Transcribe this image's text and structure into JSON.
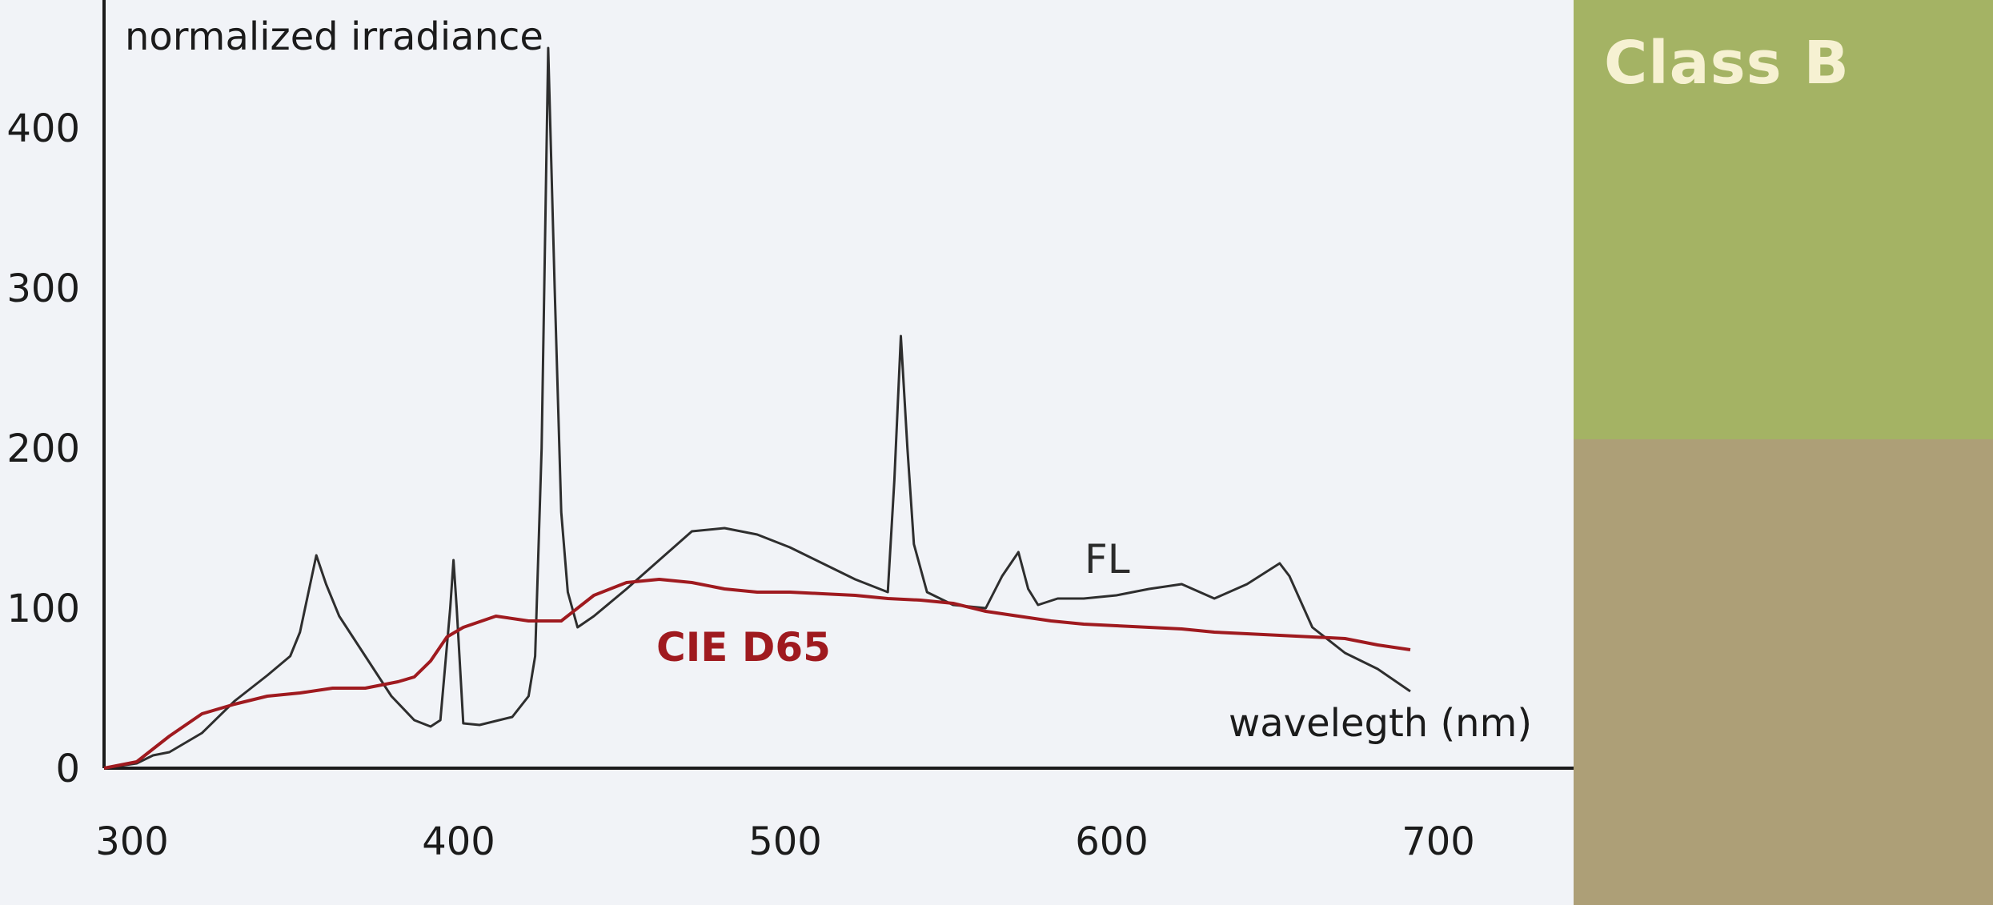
{
  "side_panel": {
    "label": "Class B",
    "top_color": "#a4b364",
    "bottom_color": "#ad9f77"
  },
  "chart_data": {
    "type": "line",
    "ylabel": "normalized irradiance",
    "xlabel": "wavelegth (nm)",
    "xlim": [
      300,
      750
    ],
    "ylim": [
      0,
      480
    ],
    "x_ticks": [
      300,
      400,
      500,
      600,
      700
    ],
    "y_ticks": [
      0,
      100,
      200,
      300,
      400
    ],
    "grid": false,
    "annotations": [
      "FL",
      "CIE D65"
    ],
    "series": [
      {
        "name": "FL",
        "color": "#2e2e2e",
        "points": [
          [
            300,
            0
          ],
          [
            310,
            3
          ],
          [
            315,
            8
          ],
          [
            320,
            10
          ],
          [
            330,
            22
          ],
          [
            340,
            42
          ],
          [
            350,
            58
          ],
          [
            357,
            70
          ],
          [
            360,
            85
          ],
          [
            365,
            133
          ],
          [
            368,
            115
          ],
          [
            372,
            95
          ],
          [
            380,
            70
          ],
          [
            388,
            45
          ],
          [
            395,
            30
          ],
          [
            400,
            26
          ],
          [
            403,
            30
          ],
          [
            406,
            100
          ],
          [
            407,
            130
          ],
          [
            408,
            100
          ],
          [
            410,
            28
          ],
          [
            415,
            27
          ],
          [
            425,
            32
          ],
          [
            430,
            45
          ],
          [
            432,
            70
          ],
          [
            434,
            200
          ],
          [
            436,
            450
          ],
          [
            438,
            300
          ],
          [
            440,
            160
          ],
          [
            442,
            110
          ],
          [
            445,
            88
          ],
          [
            450,
            95
          ],
          [
            460,
            112
          ],
          [
            470,
            130
          ],
          [
            480,
            148
          ],
          [
            490,
            150
          ],
          [
            500,
            146
          ],
          [
            510,
            138
          ],
          [
            520,
            128
          ],
          [
            530,
            118
          ],
          [
            540,
            110
          ],
          [
            542,
            180
          ],
          [
            544,
            270
          ],
          [
            546,
            200
          ],
          [
            548,
            140
          ],
          [
            552,
            110
          ],
          [
            560,
            102
          ],
          [
            570,
            100
          ],
          [
            575,
            120
          ],
          [
            580,
            135
          ],
          [
            583,
            112
          ],
          [
            586,
            102
          ],
          [
            592,
            106
          ],
          [
            600,
            106
          ],
          [
            610,
            108
          ],
          [
            620,
            112
          ],
          [
            630,
            115
          ],
          [
            640,
            106
          ],
          [
            650,
            115
          ],
          [
            660,
            128
          ],
          [
            663,
            120
          ],
          [
            670,
            88
          ],
          [
            680,
            72
          ],
          [
            690,
            62
          ],
          [
            700,
            48
          ]
        ]
      },
      {
        "name": "CIE D65",
        "color": "#9f1a1f",
        "points": [
          [
            300,
            0
          ],
          [
            310,
            4
          ],
          [
            315,
            12
          ],
          [
            320,
            20
          ],
          [
            330,
            34
          ],
          [
            340,
            40
          ],
          [
            350,
            45
          ],
          [
            360,
            47
          ],
          [
            370,
            50
          ],
          [
            380,
            50
          ],
          [
            390,
            54
          ],
          [
            395,
            57
          ],
          [
            400,
            67
          ],
          [
            405,
            82
          ],
          [
            410,
            88
          ],
          [
            420,
            95
          ],
          [
            430,
            92
          ],
          [
            440,
            92
          ],
          [
            450,
            108
          ],
          [
            460,
            116
          ],
          [
            470,
            118
          ],
          [
            480,
            116
          ],
          [
            490,
            112
          ],
          [
            500,
            110
          ],
          [
            510,
            110
          ],
          [
            520,
            109
          ],
          [
            530,
            108
          ],
          [
            540,
            106
          ],
          [
            550,
            105
          ],
          [
            560,
            103
          ],
          [
            570,
            98
          ],
          [
            580,
            95
          ],
          [
            590,
            92
          ],
          [
            600,
            90
          ],
          [
            610,
            89
          ],
          [
            620,
            88
          ],
          [
            630,
            87
          ],
          [
            640,
            85
          ],
          [
            650,
            84
          ],
          [
            660,
            83
          ],
          [
            670,
            82
          ],
          [
            680,
            81
          ],
          [
            690,
            77
          ],
          [
            700,
            74
          ]
        ]
      }
    ]
  }
}
